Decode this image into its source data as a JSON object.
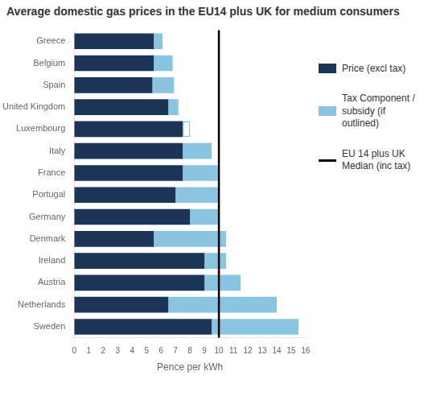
{
  "chart_data": {
    "type": "bar",
    "orientation": "horizontal",
    "stacked": true,
    "title": "Average domestic gas prices in the EU14 plus UK for medium consumers",
    "categories": [
      "Greece",
      "Belgium",
      "Spain",
      "United Kingdom",
      "Luxembourg",
      "Italy",
      "France",
      "Portugal",
      "Germany",
      "Denmark",
      "Ireland",
      "Austria",
      "Netherlands",
      "Sweden"
    ],
    "series": [
      {
        "name": "Price (excl tax)",
        "color": "#1c3557",
        "values": [
          5.5,
          5.5,
          5.4,
          6.5,
          7.5,
          7.5,
          7.5,
          7.0,
          8.0,
          5.5,
          9.0,
          9.0,
          6.5,
          9.5
        ]
      },
      {
        "name": "Tax Component /\nsubsidy (if\noutlined)",
        "color": "#89c4e1",
        "values": [
          0.6,
          1.3,
          1.5,
          0.7,
          0.5,
          2.0,
          2.5,
          3.0,
          2.0,
          5.0,
          1.5,
          2.5,
          7.5,
          6.0
        ],
        "outlined": [
          false,
          false,
          false,
          false,
          true,
          false,
          false,
          false,
          false,
          false,
          false,
          false,
          false,
          false
        ]
      }
    ],
    "vlines": [
      {
        "x": 10.0,
        "name": "EU 14 plus UK\nMedian (inc tax)",
        "color": "#000000"
      }
    ],
    "xlabel": "Pence per kWh",
    "xlim": [
      0,
      16
    ],
    "xticks": [
      0,
      1,
      2,
      3,
      4,
      5,
      6,
      7,
      8,
      9,
      10,
      11,
      12,
      13,
      14,
      15,
      16
    ],
    "grid": false,
    "legend": "right"
  }
}
